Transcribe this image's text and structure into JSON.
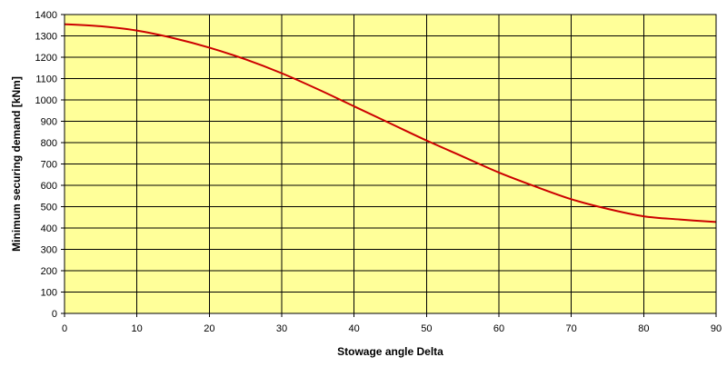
{
  "chart_data": {
    "type": "line",
    "title": "",
    "xlabel": "Stowage angle Delta",
    "ylabel": "Minimum securing demand [kNm]",
    "xlim": [
      0,
      90
    ],
    "ylim": [
      0,
      1400
    ],
    "x_ticks": [
      0,
      10,
      20,
      30,
      40,
      50,
      60,
      70,
      80,
      90
    ],
    "y_ticks": [
      0,
      100,
      200,
      300,
      400,
      500,
      600,
      700,
      800,
      900,
      1000,
      1100,
      1200,
      1300,
      1400
    ],
    "grid": true,
    "legend": "none",
    "plot_background": "#FFFF99",
    "series": [
      {
        "color": "#CC0000",
        "x": [
          0,
          5,
          10,
          15,
          20,
          25,
          30,
          35,
          40,
          45,
          50,
          55,
          60,
          65,
          70,
          75,
          80,
          85,
          90
        ],
        "y": [
          1355,
          1345,
          1325,
          1290,
          1245,
          1190,
          1125,
          1050,
          970,
          890,
          810,
          735,
          660,
          595,
          535,
          490,
          455,
          440,
          428
        ]
      }
    ]
  }
}
